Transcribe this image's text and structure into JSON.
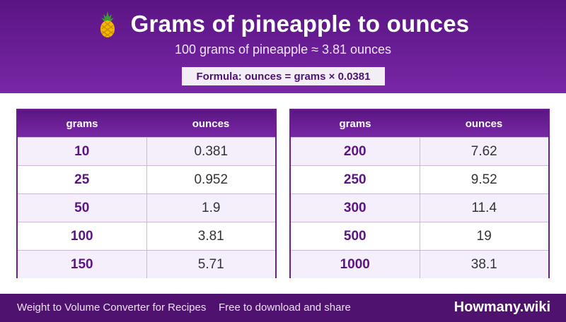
{
  "header": {
    "icon": "pineapple-icon",
    "title": "Grams of pineapple to ounces",
    "subtitle": "100 grams of pineapple ≈ 3.81 ounces",
    "formula": "Formula: ounces = grams × 0.0381"
  },
  "tables": {
    "left": {
      "headers": [
        "grams",
        "ounces"
      ],
      "rows": [
        {
          "grams": "10",
          "ounces": "0.381"
        },
        {
          "grams": "25",
          "ounces": "0.952"
        },
        {
          "grams": "50",
          "ounces": "1.9"
        },
        {
          "grams": "100",
          "ounces": "3.81"
        },
        {
          "grams": "150",
          "ounces": "5.71"
        }
      ]
    },
    "right": {
      "headers": [
        "grams",
        "ounces"
      ],
      "rows": [
        {
          "grams": "200",
          "ounces": "7.62"
        },
        {
          "grams": "250",
          "ounces": "9.52"
        },
        {
          "grams": "300",
          "ounces": "11.4"
        },
        {
          "grams": "500",
          "ounces": "19"
        },
        {
          "grams": "1000",
          "ounces": "38.1"
        }
      ]
    }
  },
  "footer": {
    "left_text": "Weight to Volume Converter for Recipes",
    "middle_text": "Free to download and share",
    "brand": "Howmany.wiki"
  },
  "colors": {
    "header_purple": "#6c1f99",
    "footer_purple": "#4f136f",
    "grams_text": "#5b1583",
    "alt_row": "#f4effa"
  }
}
